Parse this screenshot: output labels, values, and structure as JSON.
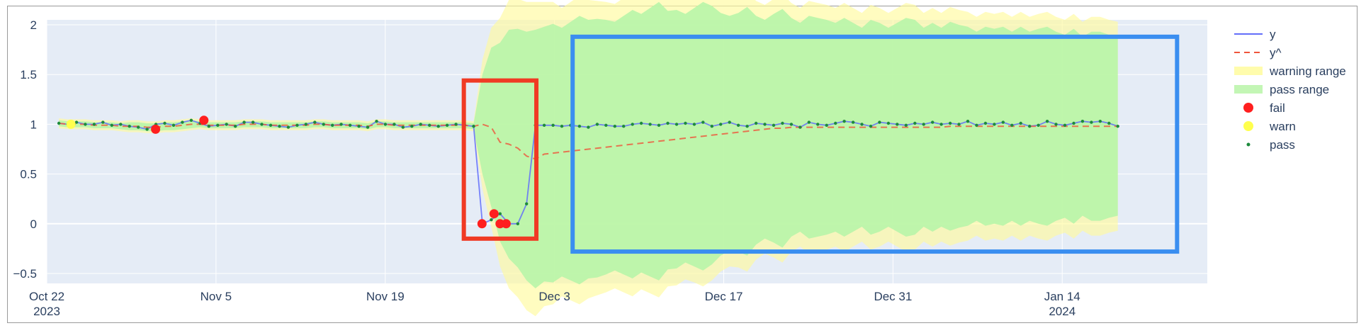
{
  "chart_data": {
    "type": "line",
    "x_start": "2023-10-23",
    "y_range": [
      -0.6,
      2.05
    ],
    "x_range": [
      "2023-10-22",
      "2024-01-26"
    ],
    "y_ticks": [
      {
        "v": 2,
        "label": "2"
      },
      {
        "v": 1.5,
        "label": "1.5"
      },
      {
        "v": 1,
        "label": "1"
      },
      {
        "v": 0.5,
        "label": "0.5"
      },
      {
        "v": 0,
        "label": "0"
      },
      {
        "v": -0.5,
        "label": "−0.5"
      }
    ],
    "x_ticks": [
      {
        "date": "2023-10-22",
        "label": "Oct 22",
        "sub": "2023"
      },
      {
        "date": "2023-11-05",
        "label": "Nov 5",
        "sub": ""
      },
      {
        "date": "2023-11-19",
        "label": "Nov 19",
        "sub": ""
      },
      {
        "date": "2023-12-03",
        "label": "Dec 3",
        "sub": ""
      },
      {
        "date": "2023-12-17",
        "label": "Dec 17",
        "sub": ""
      },
      {
        "date": "2023-12-31",
        "label": "Dec 31",
        "sub": ""
      },
      {
        "date": "2024-01-14",
        "label": "Jan 14",
        "sub": "2024"
      }
    ],
    "y": [
      1.01,
      1.0,
      1.02,
      1.0,
      1.0,
      1.02,
      0.99,
      1.0,
      0.98,
      0.97,
      0.95,
      1.0,
      1.01,
      0.99,
      1.02,
      1.04,
      1.01,
      0.98,
      0.99,
      1.0,
      0.98,
      1.02,
      1.02,
      1.0,
      0.99,
      0.98,
      0.97,
      0.99,
      1.0,
      1.02,
      1.0,
      0.99,
      1.0,
      0.99,
      0.98,
      0.97,
      1.03,
      1.0,
      1.0,
      0.97,
      0.98,
      1.0,
      0.99,
      0.98,
      0.99,
      1.0,
      0.99,
      0.98,
      0.0,
      0.04,
      0.1,
      0.0,
      0.0,
      0.2,
      0.99,
      0.99,
      0.99,
      0.98,
      0.99,
      0.98,
      0.97,
      1.0,
      0.99,
      0.98,
      0.98,
      1.0,
      1.01,
      1.0,
      0.99,
      1.01,
      1.0,
      1.01,
      1.0,
      1.02,
      0.98,
      1.0,
      1.02,
      0.99,
      0.98,
      1.01,
      1.0,
      0.99,
      1.01,
      1.0,
      0.97,
      1.02,
      1.0,
      0.99,
      1.01,
      1.03,
      1.02,
      1.0,
      0.98,
      1.02,
      1.01,
      1.0,
      0.99,
      1.01,
      1.0,
      1.02,
      1.0,
      1.01,
      1.0,
      1.03,
      0.99,
      1.01,
      1.0,
      1.02,
      0.99,
      1.01,
      0.98,
      0.99,
      1.03,
      1.0,
      0.99,
      1.01,
      1.03,
      1.02,
      1.03,
      1.01,
      0.98
    ],
    "yhat": [
      1.01,
      1.0,
      1.0,
      1.0,
      0.99,
      0.99,
      0.99,
      0.98,
      0.98,
      0.98,
      0.97,
      0.97,
      0.98,
      0.98,
      0.99,
      1.0,
      1.0,
      0.99,
      0.99,
      0.99,
      0.99,
      1.0,
      1.0,
      1.0,
      0.99,
      0.99,
      0.99,
      0.99,
      0.99,
      1.0,
      1.0,
      0.99,
      0.99,
      0.99,
      0.99,
      0.98,
      1.0,
      1.0,
      0.99,
      0.99,
      0.99,
      0.99,
      0.99,
      0.99,
      0.99,
      0.99,
      0.99,
      0.98,
      1.0,
      0.97,
      0.82,
      0.8,
      0.76,
      0.68,
      0.65,
      0.7,
      0.71,
      0.72,
      0.73,
      0.74,
      0.75,
      0.76,
      0.77,
      0.78,
      0.79,
      0.8,
      0.81,
      0.82,
      0.83,
      0.84,
      0.85,
      0.86,
      0.87,
      0.88,
      0.89,
      0.9,
      0.91,
      0.92,
      0.93,
      0.94,
      0.95,
      0.96,
      0.96,
      0.97,
      0.97,
      0.97,
      0.97,
      0.97,
      0.97,
      0.97,
      0.97,
      0.97,
      0.97,
      0.97,
      0.97,
      0.97,
      0.97,
      0.97,
      0.97,
      0.97,
      0.97,
      0.98,
      0.98,
      0.98,
      0.98,
      0.98,
      0.98,
      0.98,
      0.98,
      0.98,
      0.98,
      0.98,
      0.98,
      0.98,
      0.98,
      0.98,
      0.98,
      0.98,
      0.98,
      0.98,
      0.98
    ],
    "pass_halfwidth": [
      0.03,
      0.03,
      0.03,
      0.03,
      0.03,
      0.03,
      0.03,
      0.03,
      0.04,
      0.04,
      0.04,
      0.04,
      0.04,
      0.04,
      0.04,
      0.04,
      0.03,
      0.03,
      0.03,
      0.03,
      0.03,
      0.03,
      0.03,
      0.03,
      0.03,
      0.03,
      0.03,
      0.03,
      0.03,
      0.03,
      0.03,
      0.03,
      0.03,
      0.03,
      0.03,
      0.03,
      0.03,
      0.03,
      0.03,
      0.03,
      0.03,
      0.03,
      0.03,
      0.03,
      0.03,
      0.03,
      0.03,
      0.03,
      0.5,
      0.8,
      1.0,
      1.15,
      1.2,
      1.25,
      1.3,
      1.28,
      1.3,
      1.25,
      1.3,
      1.35,
      1.3,
      1.3,
      1.28,
      1.25,
      1.3,
      1.35,
      1.3,
      1.35,
      1.4,
      1.3,
      1.3,
      1.25,
      1.3,
      1.35,
      1.3,
      1.22,
      1.18,
      1.2,
      1.25,
      1.15,
      1.1,
      1.15,
      1.2,
      1.1,
      1.05,
      1.12,
      1.1,
      1.08,
      1.05,
      1.1,
      1.05,
      1.0,
      1.08,
      1.05,
      1.0,
      1.05,
      1.1,
      1.08,
      1.0,
      1.05,
      1.0,
      1.05,
      1.02,
      1.0,
      0.95,
      1.0,
      0.98,
      1.0,
      0.95,
      1.0,
      0.95,
      0.98,
      1.0,
      0.95,
      0.92,
      0.98,
      0.9,
      0.95,
      0.95,
      0.92,
      0.9
    ],
    "warn_extra": [
      0.02,
      0.02,
      0.02,
      0.02,
      0.02,
      0.02,
      0.02,
      0.02,
      0.02,
      0.02,
      0.02,
      0.02,
      0.02,
      0.02,
      0.02,
      0.02,
      0.02,
      0.02,
      0.02,
      0.02,
      0.02,
      0.02,
      0.02,
      0.02,
      0.02,
      0.02,
      0.02,
      0.02,
      0.02,
      0.02,
      0.02,
      0.02,
      0.02,
      0.02,
      0.02,
      0.02,
      0.02,
      0.02,
      0.02,
      0.02,
      0.02,
      0.02,
      0.02,
      0.02,
      0.02,
      0.02,
      0.02,
      0.02,
      0.15,
      0.2,
      0.25,
      0.3,
      0.3,
      0.3,
      0.28,
      0.25,
      0.22,
      0.2,
      0.2,
      0.2,
      0.2,
      0.18,
      0.18,
      0.18,
      0.18,
      0.18,
      0.17,
      0.17,
      0.17,
      0.17,
      0.17,
      0.17,
      0.16,
      0.16,
      0.16,
      0.16,
      0.16,
      0.16,
      0.16,
      0.15,
      0.15,
      0.15,
      0.15,
      0.15,
      0.15,
      0.15,
      0.15,
      0.15,
      0.15,
      0.15,
      0.15,
      0.15,
      0.15,
      0.15,
      0.15,
      0.15,
      0.15,
      0.15,
      0.15,
      0.15,
      0.15,
      0.15,
      0.15,
      0.15,
      0.15,
      0.15,
      0.15,
      0.15,
      0.15,
      0.15,
      0.15,
      0.15,
      0.15,
      0.15,
      0.15,
      0.15,
      0.15,
      0.15,
      0.15,
      0.15,
      0.15
    ],
    "fail": [
      {
        "date": "2023-10-31",
        "y": 0.95
      },
      {
        "date": "2023-11-04",
        "y": 1.04
      },
      {
        "date": "2023-11-27",
        "y": 0.0
      },
      {
        "date": "2023-11-28",
        "y": 0.1
      },
      {
        "date": "2023-11-28T12:00",
        "y": 0.0
      },
      {
        "date": "2023-11-29",
        "y": 0.0
      }
    ],
    "warn": [
      {
        "date": "2023-10-24",
        "y": 1.0
      }
    ],
    "legend": [
      {
        "key": "y",
        "label": "y",
        "kind": "line",
        "color": "#636efa"
      },
      {
        "key": "yhat",
        "label": "y^",
        "kind": "dash",
        "color": "#ef553b"
      },
      {
        "key": "warning",
        "label": "warning range",
        "kind": "band",
        "color": "#fffb9e"
      },
      {
        "key": "pass",
        "label": "pass range",
        "kind": "band",
        "color": "#b8f5a8"
      },
      {
        "key": "fail",
        "label": "fail",
        "kind": "dot",
        "color": "#ff1f1f"
      },
      {
        "key": "warn",
        "label": "warn",
        "kind": "dot",
        "color": "#ffff4d"
      },
      {
        "key": "pass_pt",
        "label": "pass",
        "kind": "small-dot",
        "color": "#1d8a3c"
      }
    ],
    "legend_position": "top-right",
    "grid": true,
    "highlights": [
      {
        "color": "#f03a24",
        "x0": "2023-11-25T12:00",
        "x1": "2023-12-01T12:00",
        "y0": -0.15,
        "y1": 1.44
      },
      {
        "color": "#3a8ef0",
        "x0": "2023-12-04T12:00",
        "x1": "2024-01-23T12:00",
        "y0": -0.28,
        "y1": 1.88
      }
    ],
    "colors": {
      "plot_bg": "#e5ecf6",
      "grid": "#ffffff",
      "tick_text": "#2a3f5f",
      "y_line": "#636efa",
      "yhat_line": "#ef553b"
    }
  }
}
